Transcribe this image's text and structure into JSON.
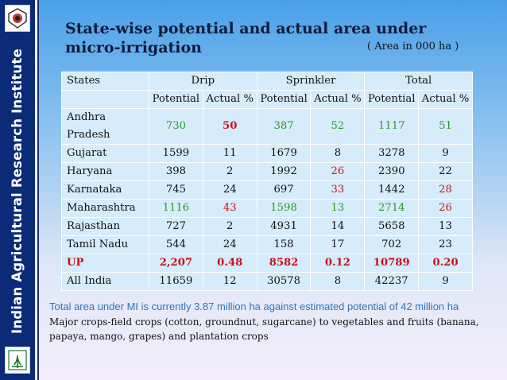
{
  "sidebar": {
    "institute_name": "Indian Agricultural Research Institute"
  },
  "slide": {
    "title": "State-wise potential and actual area under micro-irrigation",
    "unit_note": "( Area in 000 ha )"
  },
  "table": {
    "header1": [
      "States",
      "Drip",
      "Sprinkler",
      "Total"
    ],
    "header2": [
      "Potential",
      "Actual %",
      "Potential",
      "Actual %",
      "Potential",
      "Actual %"
    ],
    "rows": [
      {
        "state": "Andhra Pradesh",
        "c": [
          "730",
          "50",
          "387",
          "52",
          "1117",
          "51"
        ]
      },
      {
        "state": "Gujarat",
        "c": [
          "1599",
          "11",
          "1679",
          "8",
          "3278",
          "9"
        ]
      },
      {
        "state": "Haryana",
        "c": [
          "398",
          "2",
          "1992",
          "26",
          "2390",
          "22"
        ]
      },
      {
        "state": "Karnataka",
        "c": [
          "745",
          "24",
          "697",
          "33",
          "1442",
          "28"
        ]
      },
      {
        "state": "Maharashtra",
        "c": [
          "1116",
          "43",
          "1598",
          "13",
          "2714",
          "26"
        ]
      },
      {
        "state": "Rajasthan",
        "c": [
          "727",
          "2",
          "4931",
          "14",
          "5658",
          "13"
        ]
      },
      {
        "state": "Tamil Nadu",
        "c": [
          "544",
          "24",
          "158",
          "17",
          "702",
          "23"
        ]
      },
      {
        "state": "UP",
        "c": [
          "2,207",
          "0.48",
          "8582",
          "0.12",
          "10789",
          "0.20"
        ]
      },
      {
        "state": "All India",
        "c": [
          "11659",
          "12",
          "30578",
          "8",
          "42237",
          "9"
        ]
      }
    ]
  },
  "notes": {
    "total_area": "Total area under MI is currently 3.87 million ha against estimated potential of 42 million ha",
    "crops": "Major crops-field crops (cotton, groundnut, sugarcane) to vegetables and fruits (banana, papaya, mango, grapes) and plantation crops"
  },
  "colors": {
    "sidebar": "#0b2a78",
    "green": "#2b9a2b",
    "red": "#d11414",
    "note_blue": "#2e75b6"
  }
}
